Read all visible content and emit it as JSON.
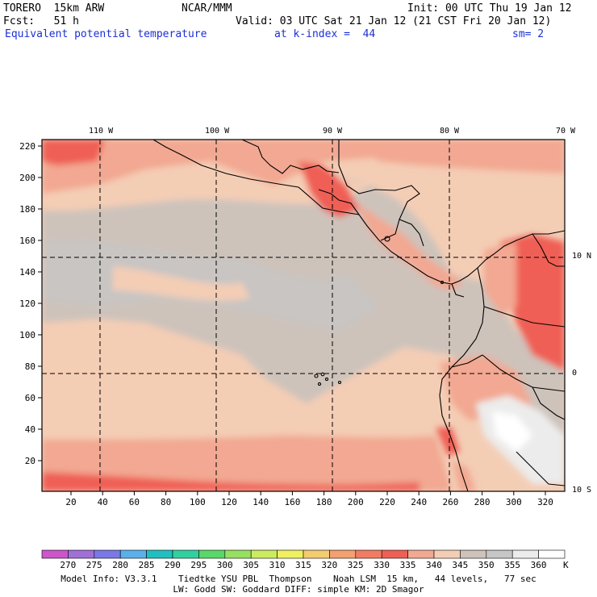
{
  "header": {
    "model": "TORERO  15km ARW",
    "org": "NCAR/MMM",
    "init": "Init: 00 UTC Thu 19 Jan 12",
    "fcst": "Fcst:   51 h",
    "valid": "Valid: 03 UTC Sat 21 Jan 12 (21 CST Fri 20 Jan 12)",
    "field": "Equivalent potential temperature",
    "kindex": "at k-index =  44",
    "sm": "sm= 2"
  },
  "map": {
    "lon_labels": [
      "110 W",
      "100 W",
      "90 W",
      "80 W",
      "70 W"
    ],
    "lat_labels": [
      "10 N",
      "0",
      "10 S"
    ],
    "x_ticks": [
      "20",
      "40",
      "60",
      "80",
      "100",
      "120",
      "140",
      "160",
      "180",
      "200",
      "220",
      "240",
      "260",
      "280",
      "300",
      "320"
    ],
    "y_ticks": [
      "220",
      "200",
      "180",
      "160",
      "140",
      "120",
      "100",
      "80",
      "60",
      "40",
      "20"
    ]
  },
  "colorbar": {
    "labels": [
      "270",
      "275",
      "280",
      "285",
      "290",
      "295",
      "300",
      "305",
      "310",
      "315",
      "320",
      "325",
      "330",
      "335",
      "340",
      "345",
      "350",
      "355",
      "360"
    ],
    "unit": "K",
    "colors": [
      "#cc55cc",
      "#a070d8",
      "#7b78e8",
      "#5ab0ea",
      "#20c0c0",
      "#30d0a0",
      "#58d868",
      "#98e060",
      "#ccec60",
      "#f0f060",
      "#f4cc70",
      "#f4a070",
      "#f27c62",
      "#ef5f55",
      "#f2a892",
      "#f4cdb5",
      "#cdc3bb",
      "#c6c6c6",
      "#ececec",
      "#ffffff"
    ]
  },
  "footer": {
    "line1": "Model Info: V3.3.1    Tiedtke YSU PBL  Thompson    Noah LSM  15 km,   44 levels,   77 sec",
    "line2": "LW: Godd SW: Goddard DIFF: simple KM: 2D Smagor"
  }
}
